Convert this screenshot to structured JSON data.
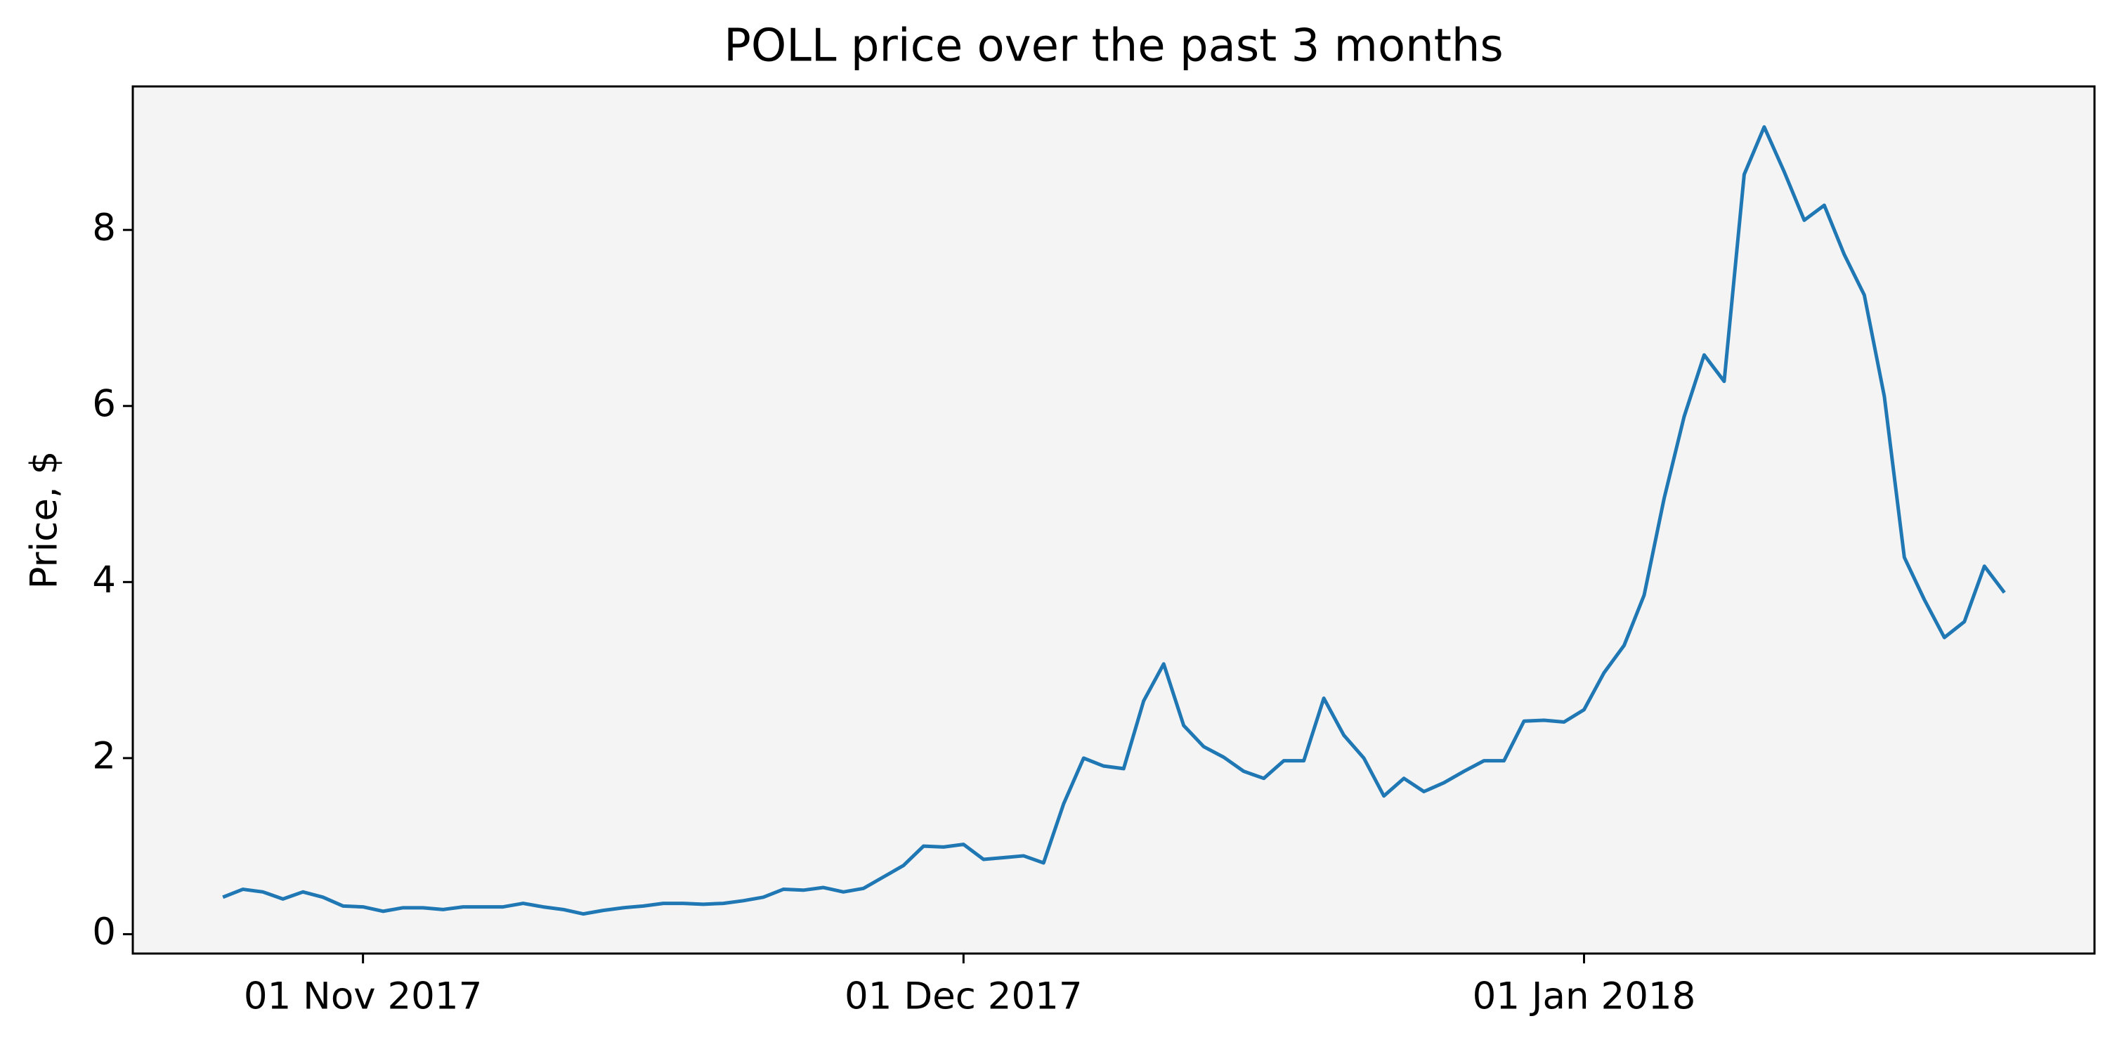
{
  "chart_data": {
    "type": "line",
    "title": "POLL price over the past 3 months",
    "y_label": "Price, $",
    "x": [
      "2017-10-25",
      "2017-10-26",
      "2017-10-27",
      "2017-10-28",
      "2017-10-29",
      "2017-10-30",
      "2017-10-31",
      "2017-11-01",
      "2017-11-02",
      "2017-11-03",
      "2017-11-04",
      "2017-11-05",
      "2017-11-06",
      "2017-11-07",
      "2017-11-08",
      "2017-11-09",
      "2017-11-10",
      "2017-11-11",
      "2017-11-12",
      "2017-11-13",
      "2017-11-14",
      "2017-11-15",
      "2017-11-16",
      "2017-11-17",
      "2017-11-18",
      "2017-11-19",
      "2017-11-20",
      "2017-11-21",
      "2017-11-22",
      "2017-11-23",
      "2017-11-24",
      "2017-11-25",
      "2017-11-26",
      "2017-11-27",
      "2017-11-28",
      "2017-11-29",
      "2017-11-30",
      "2017-12-01",
      "2017-12-02",
      "2017-12-03",
      "2017-12-04",
      "2017-12-05",
      "2017-12-06",
      "2017-12-07",
      "2017-12-08",
      "2017-12-09",
      "2017-12-10",
      "2017-12-11",
      "2017-12-12",
      "2017-12-13",
      "2017-12-14",
      "2017-12-15",
      "2017-12-16",
      "2017-12-17",
      "2017-12-18",
      "2017-12-19",
      "2017-12-20",
      "2017-12-21",
      "2017-12-22",
      "2017-12-23",
      "2017-12-24",
      "2017-12-25",
      "2017-12-26",
      "2017-12-27",
      "2017-12-28",
      "2017-12-29",
      "2017-12-30",
      "2017-12-31",
      "2018-01-01",
      "2018-01-02",
      "2018-01-03",
      "2018-01-04",
      "2018-01-05",
      "2018-01-06",
      "2018-01-07",
      "2018-01-08",
      "2018-01-09",
      "2018-01-10",
      "2018-01-11",
      "2018-01-12",
      "2018-01-13",
      "2018-01-14",
      "2018-01-15",
      "2018-01-16",
      "2018-01-17",
      "2018-01-18",
      "2018-01-19",
      "2018-01-20",
      "2018-01-21",
      "2018-01-22"
    ],
    "values": [
      0.42,
      0.51,
      0.48,
      0.4,
      0.48,
      0.42,
      0.32,
      0.31,
      0.26,
      0.3,
      0.3,
      0.28,
      0.31,
      0.31,
      0.31,
      0.35,
      0.31,
      0.28,
      0.23,
      0.27,
      0.3,
      0.32,
      0.35,
      0.35,
      0.34,
      0.35,
      0.38,
      0.42,
      0.51,
      0.5,
      0.53,
      0.48,
      0.52,
      0.65,
      0.78,
      1.0,
      0.99,
      1.02,
      0.85,
      0.87,
      0.89,
      0.81,
      1.48,
      2.0,
      1.91,
      1.88,
      2.65,
      3.07,
      2.37,
      2.13,
      2.01,
      1.85,
      1.77,
      1.97,
      1.97,
      2.68,
      2.26,
      2.0,
      1.57,
      1.77,
      1.62,
      1.72,
      1.85,
      1.97,
      1.97,
      2.42,
      2.43,
      2.41,
      2.55,
      2.97,
      3.28,
      3.85,
      4.95,
      5.88,
      6.58,
      6.28,
      8.63,
      9.17,
      8.66,
      8.11,
      8.28,
      7.72,
      7.26,
      6.11,
      4.28,
      3.8,
      3.37,
      3.55,
      4.18,
      3.88
    ],
    "color": "#1f77b4",
    "xlim": [
      "2017-10-20T12:00:00Z",
      "2018-01-26T12:00:00Z"
    ],
    "xticks": [
      {
        "value": "2017-11-01",
        "label": "01 Nov 2017"
      },
      {
        "value": "2017-12-01",
        "label": "01 Dec 2017"
      },
      {
        "value": "2018-01-01",
        "label": "01 Jan 2018"
      }
    ],
    "ylim": [
      -0.22,
      9.63
    ],
    "yticks": [
      0,
      2,
      4,
      6,
      8
    ],
    "grid": false
  }
}
